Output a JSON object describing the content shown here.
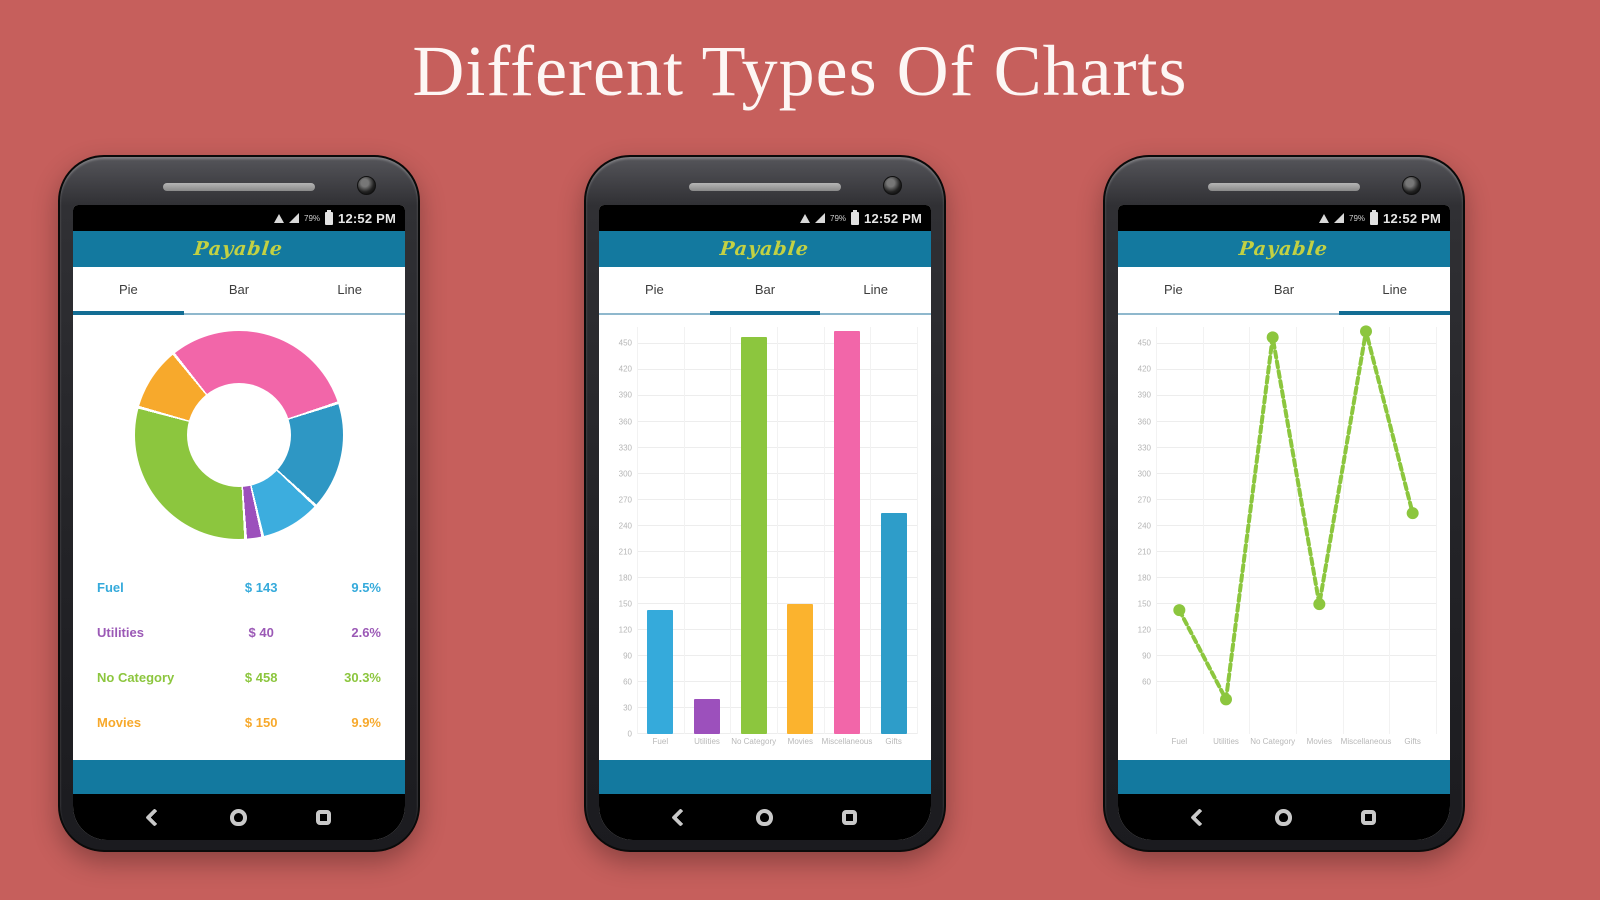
{
  "page_title": "Different Types Of Charts",
  "colors": {
    "background": "#c65f5c",
    "header_teal": "#13799f",
    "tab_underline_active": "#136d94",
    "tab_underline_track": "#8fb8cd",
    "app_name": "#c3d143",
    "axis_tick": "#b5b5b5",
    "gridline": "#ededed"
  },
  "app": {
    "name": "Payable",
    "status_time": "12:52 PM",
    "status_battery": "79%",
    "tabs": [
      {
        "label": "Pie"
      },
      {
        "label": "Bar"
      },
      {
        "label": "Line"
      }
    ]
  },
  "phones": [
    {
      "chart": "pie",
      "active_tab": 0
    },
    {
      "chart": "bar",
      "active_tab": 1
    },
    {
      "chart": "line",
      "active_tab": 2
    }
  ],
  "chart_data": [
    {
      "type": "pie",
      "title": "Expenses by category (donut)",
      "categories": [
        "Fuel",
        "Utilities",
        "No Category",
        "Movies",
        "Miscellaneous",
        "Gifts"
      ],
      "values": [
        143,
        40,
        458,
        150,
        465,
        255
      ],
      "slice_order_clockwise": [
        "Miscellaneous",
        "Gifts",
        "Fuel",
        "Utilities",
        "No Category",
        "Movies"
      ],
      "slice_colors": {
        "Fuel": "#3cadde",
        "Utilities": "#9c50bc",
        "No Category": "#8cc63e",
        "Movies": "#f7a92c",
        "Miscellaneous": "#f266a9",
        "Gifts": "#2e97c4"
      },
      "start_angle_deg": -38,
      "donut": true,
      "legend_rows": [
        {
          "label": "Fuel",
          "amount": "$ 143",
          "percent": "9.5%",
          "color": "#35aadb"
        },
        {
          "label": "Utilities",
          "amount": "$ 40",
          "percent": "2.6%",
          "color": "#9b59b6"
        },
        {
          "label": "No Category",
          "amount": "$ 458",
          "percent": "30.3%",
          "color": "#8cc63e"
        },
        {
          "label": "Movies",
          "amount": "$ 150",
          "percent": "9.9%",
          "color": "#f7a92c"
        }
      ]
    },
    {
      "type": "bar",
      "categories": [
        "Fuel",
        "Utilities",
        "No Category",
        "Movies",
        "Miscellaneous",
        "Gifts"
      ],
      "values": [
        143,
        40,
        458,
        150,
        465,
        255
      ],
      "colors": [
        "#35aadb",
        "#9c50bc",
        "#8cc63e",
        "#fbb32e",
        "#f266a9",
        "#2e9dc9"
      ],
      "ylim": [
        0,
        470
      ],
      "yticks": [
        0,
        30,
        60,
        90,
        120,
        150,
        180,
        210,
        240,
        270,
        300,
        330,
        360,
        390,
        420,
        450
      ],
      "grid": true,
      "xlabel": "",
      "ylabel": ""
    },
    {
      "type": "line",
      "categories": [
        "Fuel",
        "Utilities",
        "No Category",
        "Movies",
        "Miscellaneous",
        "Gifts"
      ],
      "values": [
        143,
        40,
        458,
        150,
        465,
        255
      ],
      "color": "#8cc63e",
      "ylim": [
        0,
        470
      ],
      "yticks": [
        60,
        90,
        120,
        150,
        180,
        210,
        240,
        270,
        300,
        330,
        360,
        390,
        420,
        450
      ],
      "grid": true,
      "xlabel": "",
      "ylabel": ""
    }
  ]
}
